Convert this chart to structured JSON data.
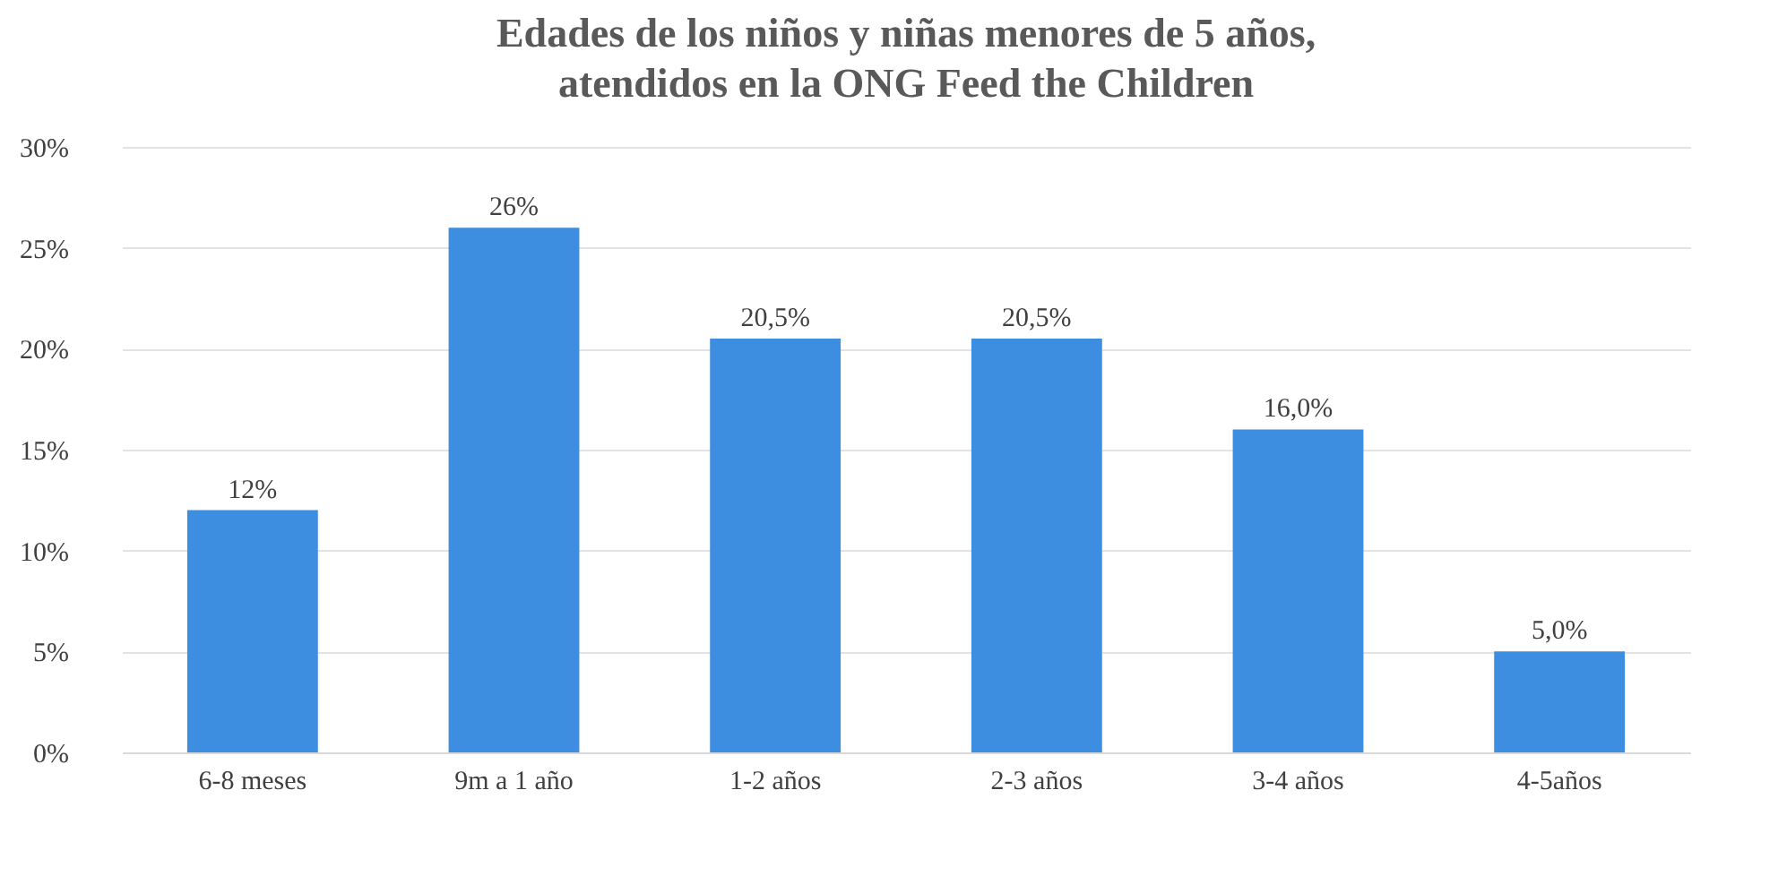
{
  "chart_data": {
    "type": "bar",
    "title": [
      "Edades de los niños y niñas menores de 5 años,",
      "atendidos en la ONG Feed the Children"
    ],
    "categories": [
      "6-8 meses",
      "9m a 1 año",
      "1-2 años",
      "2-3 años",
      "3-4 años",
      "4-5años"
    ],
    "values": [
      12,
      26,
      20.5,
      20.5,
      16,
      5
    ],
    "value_labels": [
      "12%",
      "26%",
      "20,5%",
      "20,5%",
      "16,0%",
      "5,0%"
    ],
    "color": "#3d8de0",
    "ylim": [
      0,
      30
    ],
    "yticks": [
      {
        "value": 0,
        "label": "0%"
      },
      {
        "value": 5,
        "label": "5%"
      },
      {
        "value": 10,
        "label": "10%"
      },
      {
        "value": 15,
        "label": "15%"
      },
      {
        "value": 20,
        "label": "20%"
      },
      {
        "value": 25,
        "label": "25%"
      },
      {
        "value": 30,
        "label": "30%"
      }
    ],
    "grid": "y"
  }
}
